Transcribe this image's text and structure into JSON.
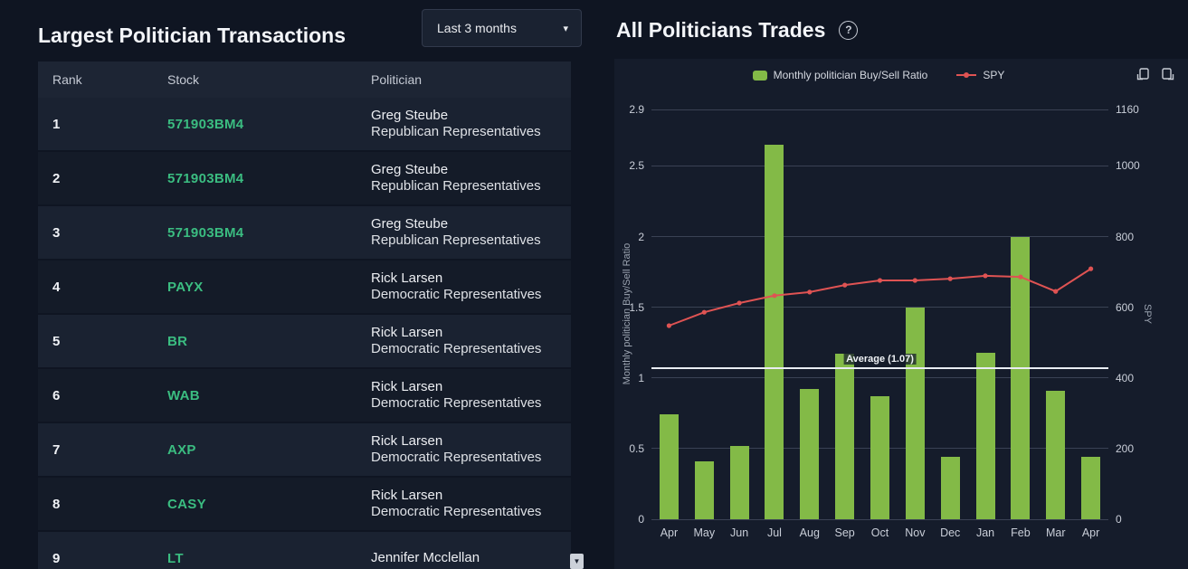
{
  "left_panel": {
    "title": "Largest Politician Transactions",
    "dropdown": {
      "value": "Last 3 months"
    },
    "table": {
      "columns": [
        "Rank",
        "Stock",
        "Politician"
      ],
      "rows": [
        {
          "rank": "1",
          "stock": "571903BM4",
          "name": "Greg Steube",
          "party": "Republican Representatives"
        },
        {
          "rank": "2",
          "stock": "571903BM4",
          "name": "Greg Steube",
          "party": "Republican Representatives"
        },
        {
          "rank": "3",
          "stock": "571903BM4",
          "name": "Greg Steube",
          "party": "Republican Representatives"
        },
        {
          "rank": "4",
          "stock": "PAYX",
          "name": "Rick Larsen",
          "party": "Democratic Representatives"
        },
        {
          "rank": "5",
          "stock": "BR",
          "name": "Rick Larsen",
          "party": "Democratic Representatives"
        },
        {
          "rank": "6",
          "stock": "WAB",
          "name": "Rick Larsen",
          "party": "Democratic Representatives"
        },
        {
          "rank": "7",
          "stock": "AXP",
          "name": "Rick Larsen",
          "party": "Democratic Representatives"
        },
        {
          "rank": "8",
          "stock": "CASY",
          "name": "Rick Larsen",
          "party": "Democratic Representatives"
        },
        {
          "rank": "9",
          "stock": "LT",
          "name": "Jennifer Mcclellan",
          "party": ""
        }
      ]
    }
  },
  "right_panel": {
    "title": "All Politicians Trades",
    "help_label": "?"
  },
  "chart_data": {
    "type": "combo",
    "categories": [
      "Apr",
      "May",
      "Jun",
      "Jul",
      "Aug",
      "Sep",
      "Oct",
      "Nov",
      "Dec",
      "Jan",
      "Feb",
      "Mar",
      "Apr"
    ],
    "series": [
      {
        "name": "Monthly politician Buy/Sell Ratio",
        "type": "bar",
        "axis": "left",
        "color": "#83ba47",
        "values": [
          0.74,
          0.41,
          0.52,
          2.65,
          0.92,
          1.17,
          0.87,
          1.5,
          0.44,
          1.18,
          2.0,
          0.91,
          0.44
        ]
      },
      {
        "name": "SPY",
        "type": "line",
        "axis": "right",
        "color": "#df5353",
        "values": [
          548,
          586,
          612,
          633,
          643,
          663,
          676,
          676,
          681,
          689,
          686,
          645,
          709
        ]
      }
    ],
    "left_axis": {
      "label": "Monthly politician Buy/Sell Ratio",
      "max": 2.9,
      "ticks": [
        0,
        0.5,
        1,
        1.5,
        2,
        2.5,
        2.9
      ],
      "tick_labels": [
        "0",
        "0.5",
        "1",
        "1.5",
        "2",
        "2.5",
        "2.9"
      ]
    },
    "right_axis": {
      "label": "SPY",
      "max": 1160,
      "ticks": [
        0,
        200,
        400,
        600,
        800,
        1000,
        1160
      ],
      "tick_labels": [
        "0",
        "200",
        "400",
        "600",
        "800",
        "1000",
        "1160"
      ]
    },
    "average": {
      "value": 1.07,
      "label": "Average (1.07)"
    },
    "legend_position": "top",
    "grid": true
  },
  "colors": {
    "accent_green": "#3bbd81",
    "bar_green": "#83ba47",
    "line_red": "#df5353",
    "panel_bg": "#151c2b",
    "page_bg": "#0f1522"
  }
}
